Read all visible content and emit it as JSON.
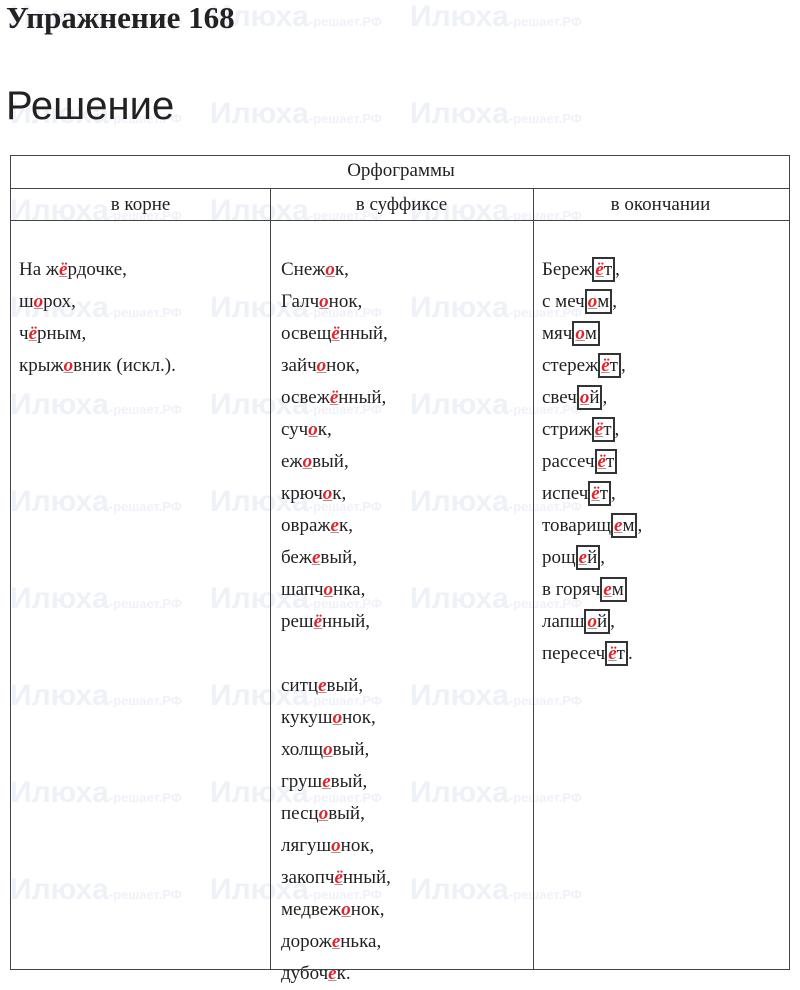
{
  "header": {
    "title": "Упражнение 168",
    "subtitle": "Решение"
  },
  "watermark": {
    "name": "Илюха",
    "site": "-решает.РФ"
  },
  "table": {
    "caption": "Орфограммы",
    "columns": [
      "в корне",
      "в суффиксе",
      "в окончании"
    ],
    "root": [
      {
        "before": "На ж",
        "letter": "ё",
        "after": "рдочке,"
      },
      {
        "before": "ш",
        "letter": "о",
        "after": "рох,"
      },
      {
        "before": "ч",
        "letter": "ё",
        "after": "рным,"
      },
      {
        "before": "крыж",
        "letter": "о",
        "after": "вник (искл.)."
      }
    ],
    "suffix": [
      {
        "before": "Снеж",
        "letter": "о",
        "after": "к,"
      },
      {
        "before": "Галч",
        "letter": "о",
        "after": "нок,"
      },
      {
        "before": "освещ",
        "letter": "ё",
        "after": "нный,"
      },
      {
        "before": "зайч",
        "letter": "о",
        "after": "нок,"
      },
      {
        "before": "освеж",
        "letter": "ё",
        "after": "нный,"
      },
      {
        "before": "суч",
        "letter": "о",
        "after": "к,"
      },
      {
        "before": "еж",
        "letter": "о",
        "after": "вый,"
      },
      {
        "before": "крюч",
        "letter": "о",
        "after": "к,"
      },
      {
        "before": "овраж",
        "letter": "е",
        "after": "к,"
      },
      {
        "before": "беж",
        "letter": "е",
        "after": "вый,"
      },
      {
        "before": "шапч",
        "letter": "о",
        "after": "нка,"
      },
      {
        "before": "реш",
        "letter": "ё",
        "after": "нный,"
      },
      {
        "before": "ситц",
        "letter": "е",
        "after": "вый,"
      },
      {
        "before": "кукуш",
        "letter": "о",
        "after": "нок,"
      },
      {
        "before": "холщ",
        "letter": "о",
        "after": "вый,"
      },
      {
        "before": "груш",
        "letter": "е",
        "after": "вый,"
      },
      {
        "before": "песц",
        "letter": "о",
        "after": "вый,"
      },
      {
        "before": "лягуш",
        "letter": "о",
        "after": "нок,"
      },
      {
        "before": "закопч",
        "letter": "ё",
        "after": "нный,"
      },
      {
        "before": "медвеж",
        "letter": "о",
        "after": "нок,"
      },
      {
        "before": "дорож",
        "letter": "е",
        "after": "нька,"
      },
      {
        "before": "дубоч",
        "letter": "е",
        "after": "к."
      }
    ],
    "ending": [
      {
        "stem": "Береж",
        "letter": "ё",
        "rest": "т",
        "punct": ","
      },
      {
        "stem": "с меч",
        "letter": "о",
        "rest": "м",
        "punct": ","
      },
      {
        "stem": "мяч",
        "letter": "о",
        "rest": "м"
      },
      {
        "stem": "стереж",
        "letter": "ё",
        "rest": "т",
        "punct": ","
      },
      {
        "stem": "свеч",
        "letter": "о",
        "rest": "й",
        "punct": ","
      },
      {
        "stem": "стриж",
        "letter": "ё",
        "rest": "т",
        "punct": ","
      },
      {
        "stem": "рассеч",
        "letter": "ё",
        "rest": "т"
      },
      {
        "stem": "испеч",
        "letter": "ё",
        "rest": "т",
        "punct": ","
      },
      {
        "stem": "товарищ",
        "letter": "е",
        "rest": "м",
        "punct": ","
      },
      {
        "stem": "рощ",
        "letter": "е",
        "rest": "й",
        "punct": ","
      },
      {
        "stem": "в горяч",
        "letter": "е",
        "rest": "м"
      },
      {
        "stem": "лапш",
        "letter": "о",
        "rest": "й",
        "punct": ","
      },
      {
        "stem": "пересеч",
        "letter": "ё",
        "rest": "т",
        "punct": "."
      }
    ]
  }
}
